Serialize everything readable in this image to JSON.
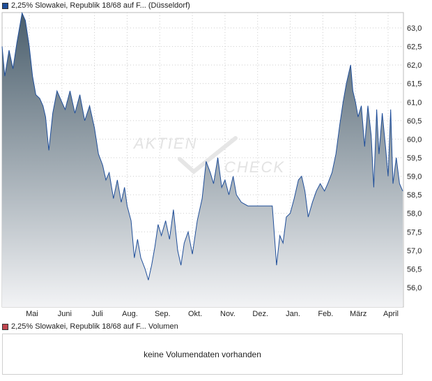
{
  "legend_price": {
    "label": "2,25% Slowakei, Republik 18/68 auf F... (Düsseldorf)",
    "color": "#1f4e99"
  },
  "legend_volume": {
    "label": "2,25% Slowakei, Republik 18/68 auf F... Volumen",
    "color": "#c0454f"
  },
  "watermark": {
    "word1": "AKTIEN",
    "word2": "CHECK"
  },
  "volume_panel": {
    "message": "keine Volumendaten vorhanden"
  },
  "colors": {
    "line": "#1f4e99",
    "fill_top": "#4a5e6c",
    "fill_bottom": "#f2f3f5",
    "grid": "#cccccc"
  },
  "chart_data": {
    "type": "area",
    "x_unit": "month index (0 = start of May, 11 = start of April)",
    "x_labels": [
      "Mai",
      "Juni",
      "Juli",
      "Aug.",
      "Sep.",
      "Okt.",
      "Nov.",
      "Dez.",
      "Jan.",
      "Feb.",
      "März",
      "April"
    ],
    "y_ticks": [
      "56,0",
      "56,5",
      "57,0",
      "57,5",
      "58,0",
      "58,5",
      "59,0",
      "59,5",
      "60,0",
      "60,5",
      "61,0",
      "61,5",
      "62,0",
      "62,5",
      "63,0"
    ],
    "ylim": [
      55.5,
      63.5
    ],
    "xlim": [
      -0.85,
      11.45
    ],
    "grid": true,
    "series": [
      {
        "points": [
          [
            -0.85,
            62.5
          ],
          [
            -0.75,
            61.7
          ],
          [
            -0.62,
            62.4
          ],
          [
            -0.5,
            61.9
          ],
          [
            -0.38,
            62.6
          ],
          [
            -0.22,
            63.4
          ],
          [
            -0.12,
            63.2
          ],
          [
            0.0,
            62.5
          ],
          [
            0.1,
            61.7
          ],
          [
            0.2,
            61.2
          ],
          [
            0.32,
            61.1
          ],
          [
            0.42,
            60.9
          ],
          [
            0.5,
            60.6
          ],
          [
            0.6,
            59.7
          ],
          [
            0.72,
            60.7
          ],
          [
            0.85,
            61.3
          ],
          [
            1.0,
            61.0
          ],
          [
            1.1,
            60.8
          ],
          [
            1.25,
            61.3
          ],
          [
            1.4,
            60.7
          ],
          [
            1.55,
            61.2
          ],
          [
            1.7,
            60.5
          ],
          [
            1.85,
            60.9
          ],
          [
            2.0,
            60.3
          ],
          [
            2.12,
            59.6
          ],
          [
            2.25,
            59.3
          ],
          [
            2.35,
            58.9
          ],
          [
            2.45,
            59.1
          ],
          [
            2.58,
            58.4
          ],
          [
            2.7,
            58.9
          ],
          [
            2.82,
            58.3
          ],
          [
            2.92,
            58.7
          ],
          [
            3.0,
            58.2
          ],
          [
            3.12,
            57.8
          ],
          [
            3.22,
            56.8
          ],
          [
            3.32,
            57.3
          ],
          [
            3.42,
            56.8
          ],
          [
            3.55,
            56.5
          ],
          [
            3.65,
            56.2
          ],
          [
            3.75,
            56.6
          ],
          [
            3.85,
            57.1
          ],
          [
            3.95,
            57.7
          ],
          [
            4.05,
            57.4
          ],
          [
            4.18,
            57.8
          ],
          [
            4.3,
            57.3
          ],
          [
            4.42,
            58.1
          ],
          [
            4.55,
            57.0
          ],
          [
            4.65,
            56.6
          ],
          [
            4.75,
            57.2
          ],
          [
            4.87,
            57.5
          ],
          [
            5.0,
            56.9
          ],
          [
            5.15,
            57.8
          ],
          [
            5.3,
            58.4
          ],
          [
            5.42,
            59.4
          ],
          [
            5.55,
            59.1
          ],
          [
            5.65,
            58.8
          ],
          [
            5.78,
            59.5
          ],
          [
            5.9,
            58.7
          ],
          [
            6.0,
            58.9
          ],
          [
            6.12,
            58.5
          ],
          [
            6.25,
            59.0
          ],
          [
            6.35,
            58.5
          ],
          [
            6.5,
            58.3
          ],
          [
            6.7,
            58.2
          ],
          [
            6.9,
            58.2
          ],
          [
            7.2,
            58.2
          ],
          [
            7.45,
            58.2
          ],
          [
            7.5,
            57.6
          ],
          [
            7.58,
            56.6
          ],
          [
            7.68,
            57.4
          ],
          [
            7.78,
            57.2
          ],
          [
            7.88,
            57.9
          ],
          [
            8.0,
            58.0
          ],
          [
            8.12,
            58.4
          ],
          [
            8.25,
            58.9
          ],
          [
            8.35,
            59.0
          ],
          [
            8.45,
            58.6
          ],
          [
            8.55,
            57.9
          ],
          [
            8.68,
            58.3
          ],
          [
            8.8,
            58.6
          ],
          [
            8.92,
            58.8
          ],
          [
            9.05,
            58.6
          ],
          [
            9.15,
            58.8
          ],
          [
            9.28,
            59.1
          ],
          [
            9.4,
            59.6
          ],
          [
            9.52,
            60.4
          ],
          [
            9.62,
            61.0
          ],
          [
            9.72,
            61.5
          ],
          [
            9.85,
            62.0
          ],
          [
            9.92,
            61.3
          ],
          [
            10.0,
            61.0
          ],
          [
            10.08,
            60.6
          ],
          [
            10.18,
            60.9
          ],
          [
            10.28,
            59.8
          ],
          [
            10.38,
            60.9
          ],
          [
            10.48,
            60.1
          ],
          [
            10.56,
            58.7
          ],
          [
            10.65,
            60.8
          ],
          [
            10.72,
            59.6
          ],
          [
            10.82,
            60.7
          ],
          [
            10.92,
            59.8
          ],
          [
            11.0,
            59.0
          ],
          [
            11.08,
            60.8
          ],
          [
            11.15,
            58.8
          ],
          [
            11.25,
            59.5
          ],
          [
            11.35,
            58.8
          ],
          [
            11.45,
            58.6
          ]
        ]
      }
    ]
  }
}
